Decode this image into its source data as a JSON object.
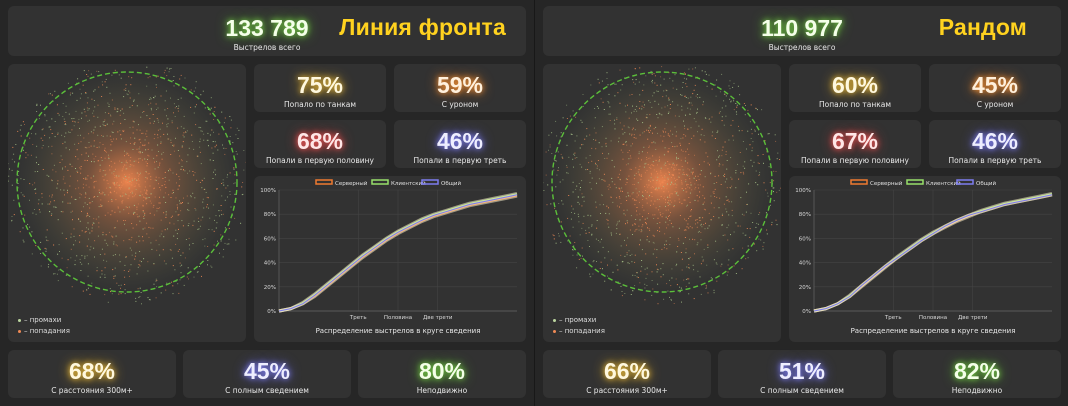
{
  "colors": {
    "server": "#f07a30",
    "client": "#98e06a",
    "total": "#7c7cf0",
    "circle": "#5bbf3a",
    "miss": "#a9c48a",
    "hit": "#f08a55"
  },
  "panels": [
    {
      "title": "Линия фронта",
      "total_shots": "133 789",
      "total_label": "Выстрелов всего",
      "stats": [
        {
          "value": "75%",
          "label": "Попало по танкам",
          "glow": "yellow"
        },
        {
          "value": "59%",
          "label": "С уроном",
          "glow": "orange"
        },
        {
          "value": "68%",
          "label": "Попали в первую половину",
          "glow": "red"
        },
        {
          "value": "46%",
          "label": "Попали в первую треть",
          "glow": "blue"
        }
      ],
      "bottom": [
        {
          "value": "68%",
          "label": "С расстояния 300м+",
          "glow": "yellow"
        },
        {
          "value": "45%",
          "label": "С полным сведением",
          "glow": "blue"
        },
        {
          "value": "80%",
          "label": "Неподвижно",
          "glow": "green"
        }
      ],
      "scatter_legend": {
        "miss": "– промахи",
        "hit": "– попадания"
      },
      "seed": 7
    },
    {
      "title": "Рандом",
      "total_shots": "110 977",
      "total_label": "Выстрелов всего",
      "stats": [
        {
          "value": "60%",
          "label": "Попало по танкам",
          "glow": "yellow"
        },
        {
          "value": "45%",
          "label": "С уроном",
          "glow": "orange"
        },
        {
          "value": "67%",
          "label": "Попали в первую половину",
          "glow": "red"
        },
        {
          "value": "46%",
          "label": "Попали в первую треть",
          "glow": "blue"
        }
      ],
      "bottom": [
        {
          "value": "66%",
          "label": "С расстояния 300м+",
          "glow": "yellow"
        },
        {
          "value": "51%",
          "label": "С полным сведением",
          "glow": "blue"
        },
        {
          "value": "82%",
          "label": "Неподвижно",
          "glow": "green"
        }
      ],
      "scatter_legend": {
        "miss": "– промахи",
        "hit": "– попадания"
      },
      "seed": 13
    }
  ],
  "chart_data": [
    {
      "type": "line",
      "xlabel": "Распределение выстрелов в круге сведения",
      "ylabel": "",
      "xlim": [
        0,
        1
      ],
      "ylim": [
        0,
        100
      ],
      "yticks": [
        "0%",
        "20%",
        "40%",
        "60%",
        "80%",
        "100%"
      ],
      "xticks": [
        {
          "x": 0.333,
          "label": "Треть"
        },
        {
          "x": 0.5,
          "label": "Половина"
        },
        {
          "x": 0.667,
          "label": "Две трети"
        }
      ],
      "legend_position": "top-center",
      "x": [
        0,
        0.05,
        0.1,
        0.15,
        0.2,
        0.25,
        0.3,
        0.35,
        0.4,
        0.45,
        0.5,
        0.55,
        0.6,
        0.65,
        0.7,
        0.75,
        0.8,
        0.85,
        0.9,
        0.95,
        1.0
      ],
      "series": [
        {
          "name": "Серверный",
          "values": [
            0,
            2,
            6,
            12,
            20,
            28,
            36,
            44,
            51,
            58,
            64,
            69,
            74,
            78,
            81,
            84,
            87,
            89,
            91,
            93,
            95
          ]
        },
        {
          "name": "Клиентский",
          "values": [
            0,
            2,
            7,
            14,
            22,
            30,
            38,
            46,
            53,
            60,
            66,
            71,
            76,
            80,
            83,
            86,
            89,
            91,
            93,
            95,
            97
          ]
        },
        {
          "name": "Общий",
          "values": [
            0,
            2,
            6,
            13,
            21,
            29,
            37,
            45,
            52,
            59,
            65,
            70,
            75,
            79,
            82,
            85,
            88,
            90,
            92,
            94,
            96
          ]
        }
      ]
    },
    {
      "type": "line",
      "xlabel": "Распределение выстрелов в круге сведения",
      "ylabel": "",
      "xlim": [
        0,
        1
      ],
      "ylim": [
        0,
        100
      ],
      "yticks": [
        "0%",
        "20%",
        "40%",
        "60%",
        "80%",
        "100%"
      ],
      "xticks": [
        {
          "x": 0.333,
          "label": "Треть"
        },
        {
          "x": 0.5,
          "label": "Половина"
        },
        {
          "x": 0.667,
          "label": "Две трети"
        }
      ],
      "legend_position": "top-center",
      "x": [
        0,
        0.05,
        0.1,
        0.15,
        0.2,
        0.25,
        0.3,
        0.35,
        0.4,
        0.45,
        0.5,
        0.55,
        0.6,
        0.65,
        0.7,
        0.75,
        0.8,
        0.85,
        0.9,
        0.95,
        1.0
      ],
      "series": [
        {
          "name": "Серверный",
          "values": [
            0,
            2,
            6,
            12,
            20,
            28,
            36,
            44,
            51,
            58,
            64,
            69,
            74,
            78,
            82,
            85,
            88,
            90,
            92,
            94,
            96
          ]
        },
        {
          "name": "Клиентский",
          "values": [
            0,
            2,
            6,
            13,
            21,
            29,
            37,
            45,
            52,
            59,
            65,
            70,
            75,
            79,
            83,
            86,
            89,
            91,
            93,
            95,
            97
          ]
        },
        {
          "name": "Общий",
          "values": [
            0,
            2,
            6,
            12,
            21,
            29,
            37,
            44,
            51,
            58,
            64,
            70,
            75,
            79,
            82,
            85,
            88,
            90,
            92,
            94,
            96
          ]
        }
      ]
    }
  ]
}
